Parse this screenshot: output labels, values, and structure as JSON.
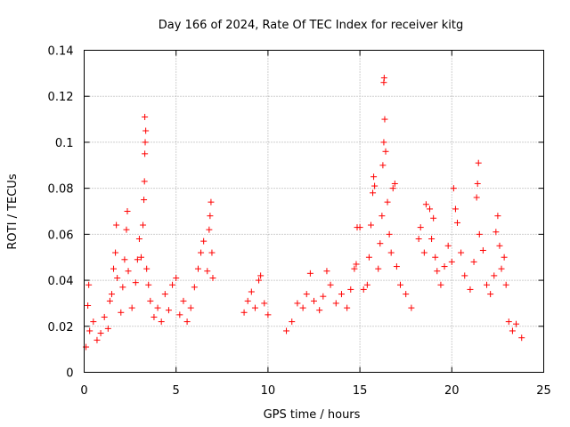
{
  "chart_data": {
    "type": "scatter",
    "title": "Day 166 of 2024, Rate Of TEC Index for receiver kitg",
    "xlabel": "GPS time / hours",
    "ylabel": "ROTI / TECUs",
    "xlim": [
      0,
      25
    ],
    "ylim": [
      0,
      0.14
    ],
    "xticks": [
      0,
      5,
      10,
      15,
      20,
      25
    ],
    "xtick_labels": [
      "0",
      "5",
      "10",
      "15",
      "20",
      "25"
    ],
    "yticks": [
      0,
      0.02,
      0.04,
      0.06,
      0.08,
      0.1,
      0.12,
      0.14
    ],
    "ytick_labels": [
      "0",
      "0.02",
      "0.04",
      "0.06",
      "0.08",
      "0.1",
      "0.12",
      "0.14"
    ],
    "grid": true,
    "marker": "+",
    "color": "#ff0000",
    "series": [
      {
        "name": "ROTI",
        "points": [
          [
            0.1,
            0.011
          ],
          [
            0.3,
            0.018
          ],
          [
            0.2,
            0.029
          ],
          [
            0.25,
            0.038
          ],
          [
            0.5,
            0.022
          ],
          [
            0.7,
            0.014
          ],
          [
            0.9,
            0.017
          ],
          [
            1.1,
            0.024
          ],
          [
            1.3,
            0.019
          ],
          [
            1.4,
            0.031
          ],
          [
            1.5,
            0.034
          ],
          [
            1.6,
            0.045
          ],
          [
            1.7,
            0.052
          ],
          [
            1.75,
            0.064
          ],
          [
            1.8,
            0.041
          ],
          [
            2.0,
            0.026
          ],
          [
            2.1,
            0.037
          ],
          [
            2.2,
            0.049
          ],
          [
            2.3,
            0.062
          ],
          [
            2.35,
            0.07
          ],
          [
            2.4,
            0.044
          ],
          [
            2.6,
            0.028
          ],
          [
            2.8,
            0.039
          ],
          [
            2.9,
            0.049
          ],
          [
            3.0,
            0.058
          ],
          [
            3.1,
            0.05
          ],
          [
            3.2,
            0.064
          ],
          [
            3.25,
            0.075
          ],
          [
            3.28,
            0.083
          ],
          [
            3.3,
            0.095
          ],
          [
            3.32,
            0.1
          ],
          [
            3.35,
            0.105
          ],
          [
            3.3,
            0.111
          ],
          [
            3.4,
            0.045
          ],
          [
            3.5,
            0.038
          ],
          [
            3.6,
            0.031
          ],
          [
            3.8,
            0.024
          ],
          [
            4.0,
            0.028
          ],
          [
            4.2,
            0.022
          ],
          [
            4.4,
            0.034
          ],
          [
            4.6,
            0.027
          ],
          [
            4.8,
            0.038
          ],
          [
            5.0,
            0.041
          ],
          [
            5.2,
            0.025
          ],
          [
            5.4,
            0.031
          ],
          [
            5.6,
            0.022
          ],
          [
            5.8,
            0.028
          ],
          [
            6.0,
            0.037
          ],
          [
            6.2,
            0.045
          ],
          [
            6.35,
            0.052
          ],
          [
            6.5,
            0.057
          ],
          [
            6.7,
            0.044
          ],
          [
            6.8,
            0.062
          ],
          [
            6.85,
            0.068
          ],
          [
            6.9,
            0.074
          ],
          [
            6.95,
            0.052
          ],
          [
            7.0,
            0.041
          ],
          [
            8.7,
            0.026
          ],
          [
            8.9,
            0.031
          ],
          [
            9.1,
            0.035
          ],
          [
            9.3,
            0.028
          ],
          [
            9.5,
            0.04
          ],
          [
            9.6,
            0.042
          ],
          [
            9.8,
            0.03
          ],
          [
            10.0,
            0.025
          ],
          [
            11.0,
            0.018
          ],
          [
            11.3,
            0.022
          ],
          [
            11.6,
            0.03
          ],
          [
            11.9,
            0.028
          ],
          [
            12.1,
            0.034
          ],
          [
            12.3,
            0.043
          ],
          [
            12.5,
            0.031
          ],
          [
            12.8,
            0.027
          ],
          [
            13.0,
            0.033
          ],
          [
            13.2,
            0.044
          ],
          [
            13.4,
            0.038
          ],
          [
            13.7,
            0.03
          ],
          [
            14.0,
            0.034
          ],
          [
            14.3,
            0.028
          ],
          [
            14.5,
            0.036
          ],
          [
            14.7,
            0.045
          ],
          [
            14.8,
            0.047
          ],
          [
            14.85,
            0.063
          ],
          [
            15.0,
            0.063
          ],
          [
            15.2,
            0.036
          ],
          [
            15.4,
            0.038
          ],
          [
            15.5,
            0.05
          ],
          [
            15.6,
            0.064
          ],
          [
            15.7,
            0.078
          ],
          [
            15.75,
            0.085
          ],
          [
            15.8,
            0.081
          ],
          [
            16.0,
            0.045
          ],
          [
            16.1,
            0.056
          ],
          [
            16.2,
            0.068
          ],
          [
            16.25,
            0.09
          ],
          [
            16.3,
            0.1
          ],
          [
            16.35,
            0.11
          ],
          [
            16.3,
            0.126
          ],
          [
            16.32,
            0.128
          ],
          [
            16.4,
            0.096
          ],
          [
            16.5,
            0.074
          ],
          [
            16.6,
            0.06
          ],
          [
            16.7,
            0.052
          ],
          [
            16.8,
            0.08
          ],
          [
            16.9,
            0.082
          ],
          [
            17.0,
            0.046
          ],
          [
            17.2,
            0.038
          ],
          [
            17.5,
            0.034
          ],
          [
            17.8,
            0.028
          ],
          [
            18.2,
            0.058
          ],
          [
            18.3,
            0.063
          ],
          [
            18.5,
            0.052
          ],
          [
            18.6,
            0.073
          ],
          [
            18.8,
            0.071
          ],
          [
            18.9,
            0.058
          ],
          [
            19.0,
            0.067
          ],
          [
            19.1,
            0.05
          ],
          [
            19.2,
            0.044
          ],
          [
            19.4,
            0.038
          ],
          [
            19.6,
            0.046
          ],
          [
            19.8,
            0.055
          ],
          [
            20.0,
            0.048
          ],
          [
            20.1,
            0.08
          ],
          [
            20.2,
            0.071
          ],
          [
            20.3,
            0.065
          ],
          [
            20.5,
            0.052
          ],
          [
            20.7,
            0.042
          ],
          [
            21.0,
            0.036
          ],
          [
            21.2,
            0.048
          ],
          [
            21.35,
            0.076
          ],
          [
            21.4,
            0.082
          ],
          [
            21.45,
            0.091
          ],
          [
            21.5,
            0.06
          ],
          [
            21.7,
            0.053
          ],
          [
            21.9,
            0.038
          ],
          [
            22.1,
            0.034
          ],
          [
            22.3,
            0.042
          ],
          [
            22.4,
            0.061
          ],
          [
            22.5,
            0.068
          ],
          [
            22.6,
            0.055
          ],
          [
            22.7,
            0.045
          ],
          [
            22.85,
            0.05
          ],
          [
            22.95,
            0.038
          ],
          [
            23.1,
            0.022
          ],
          [
            23.3,
            0.018
          ],
          [
            23.5,
            0.021
          ],
          [
            23.8,
            0.015
          ]
        ]
      }
    ]
  }
}
